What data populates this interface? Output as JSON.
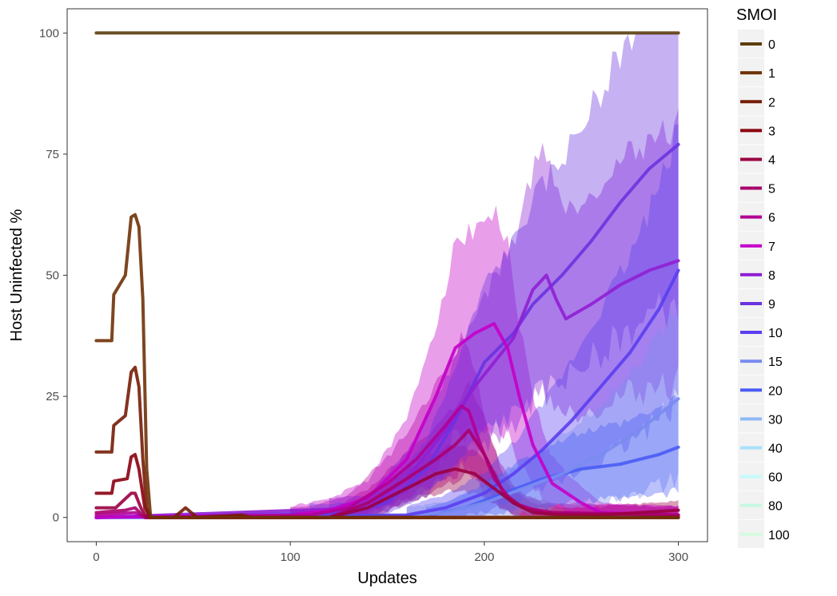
{
  "chart_data": {
    "type": "line",
    "xlabel": "Updates",
    "ylabel": "Host Uninfected %",
    "xlim": [
      -15,
      315
    ],
    "ylim": [
      -5,
      105
    ],
    "x_ticks": [
      0,
      100,
      200,
      300
    ],
    "y_ticks": [
      0,
      25,
      50,
      75,
      100
    ],
    "grid": false,
    "legend": {
      "title": "SMOI",
      "position": "right"
    },
    "series": [
      {
        "name": "0",
        "color": "#5c3d0e",
        "points": [
          [
            0,
            100
          ],
          [
            300,
            100
          ]
        ]
      },
      {
        "name": "1",
        "color": "#6f3208",
        "points": [
          [
            0,
            36.5
          ],
          [
            8,
            36.5
          ],
          [
            9,
            46
          ],
          [
            15,
            50
          ],
          [
            18,
            62
          ],
          [
            20,
            62.5
          ],
          [
            22,
            60
          ],
          [
            24,
            45
          ],
          [
            26,
            10
          ],
          [
            28,
            0
          ],
          [
            30,
            0
          ],
          [
            300,
            0
          ]
        ]
      },
      {
        "name": "2",
        "color": "#751d07",
        "points": [
          [
            0,
            13.5
          ],
          [
            8,
            13.5
          ],
          [
            9,
            19
          ],
          [
            15,
            21
          ],
          [
            18,
            30
          ],
          [
            20,
            31
          ],
          [
            22,
            27
          ],
          [
            24,
            12
          ],
          [
            26,
            2
          ],
          [
            28,
            0
          ],
          [
            40,
            0
          ],
          [
            46,
            2
          ],
          [
            49,
            1
          ],
          [
            52,
            0
          ],
          [
            75,
            0.5
          ],
          [
            80,
            0
          ],
          [
            300,
            0
          ]
        ]
      },
      {
        "name": "3",
        "color": "#8b0010",
        "points": [
          [
            0,
            5
          ],
          [
            8,
            5
          ],
          [
            9,
            7.5
          ],
          [
            16,
            8
          ],
          [
            18,
            12.5
          ],
          [
            20,
            13
          ],
          [
            22,
            10
          ],
          [
            25,
            2
          ],
          [
            28,
            0
          ],
          [
            300,
            0
          ]
        ]
      },
      {
        "name": "4",
        "color": "#9a0043",
        "points": [
          [
            0,
            2
          ],
          [
            10,
            2
          ],
          [
            18,
            5
          ],
          [
            20,
            5
          ],
          [
            23,
            2
          ],
          [
            26,
            0
          ],
          [
            120,
            0
          ],
          [
            140,
            2
          ],
          [
            160,
            6
          ],
          [
            175,
            9
          ],
          [
            185,
            10
          ],
          [
            195,
            9
          ],
          [
            205,
            6
          ],
          [
            215,
            3
          ],
          [
            225,
            1
          ],
          [
            240,
            0.5
          ],
          [
            260,
            0.5
          ],
          [
            280,
            1
          ],
          [
            300,
            1.5
          ]
        ]
      },
      {
        "name": "5",
        "color": "#a8006e",
        "points": [
          [
            0,
            1
          ],
          [
            15,
            1.5
          ],
          [
            20,
            2
          ],
          [
            25,
            0
          ],
          [
            120,
            0
          ],
          [
            140,
            3
          ],
          [
            160,
            8
          ],
          [
            175,
            12
          ],
          [
            185,
            15
          ],
          [
            192,
            18
          ],
          [
            200,
            13
          ],
          [
            210,
            5
          ],
          [
            220,
            2
          ],
          [
            235,
            1
          ],
          [
            300,
            0.5
          ]
        ]
      },
      {
        "name": "6",
        "color": "#b10094",
        "points": [
          [
            0,
            0.5
          ],
          [
            20,
            1
          ],
          [
            25,
            0
          ],
          [
            110,
            0.5
          ],
          [
            130,
            2
          ],
          [
            150,
            7
          ],
          [
            165,
            12
          ],
          [
            180,
            19
          ],
          [
            188,
            23
          ],
          [
            192,
            22
          ],
          [
            198,
            15
          ],
          [
            205,
            8
          ],
          [
            215,
            3
          ],
          [
            230,
            1
          ],
          [
            300,
            0.5
          ]
        ]
      },
      {
        "name": "7",
        "color": "#c400c9",
        "points": [
          [
            0,
            0
          ],
          [
            100,
            0.5
          ],
          [
            120,
            1.5
          ],
          [
            140,
            4
          ],
          [
            160,
            12
          ],
          [
            175,
            25
          ],
          [
            185,
            35
          ],
          [
            195,
            38
          ],
          [
            205,
            40
          ],
          [
            212,
            35
          ],
          [
            218,
            25
          ],
          [
            225,
            15
          ],
          [
            235,
            7
          ],
          [
            250,
            3
          ],
          [
            260,
            1
          ],
          [
            300,
            0.5
          ]
        ]
      },
      {
        "name": "8",
        "color": "#8f1fd4",
        "points": [
          [
            0,
            0
          ],
          [
            140,
            2
          ],
          [
            160,
            8
          ],
          [
            180,
            18
          ],
          [
            195,
            27
          ],
          [
            205,
            32
          ],
          [
            215,
            37
          ],
          [
            225,
            47
          ],
          [
            232,
            50
          ],
          [
            237,
            45
          ],
          [
            242,
            41
          ],
          [
            255,
            44
          ],
          [
            270,
            48
          ],
          [
            285,
            51
          ],
          [
            300,
            53
          ]
        ]
      },
      {
        "name": "9",
        "color": "#6a33e0",
        "points": [
          [
            0,
            0
          ],
          [
            130,
            1
          ],
          [
            150,
            3
          ],
          [
            170,
            10
          ],
          [
            185,
            20
          ],
          [
            200,
            32
          ],
          [
            215,
            38
          ],
          [
            225,
            44
          ],
          [
            240,
            50
          ],
          [
            255,
            57
          ],
          [
            270,
            65
          ],
          [
            285,
            72
          ],
          [
            300,
            77
          ]
        ]
      },
      {
        "name": "10",
        "color": "#5a3ef0",
        "points": [
          [
            0,
            0
          ],
          [
            160,
            0.5
          ],
          [
            180,
            2
          ],
          [
            200,
            5
          ],
          [
            215,
            9
          ],
          [
            230,
            14
          ],
          [
            245,
            20
          ],
          [
            260,
            27
          ],
          [
            275,
            34
          ],
          [
            290,
            43
          ],
          [
            300,
            51
          ]
        ]
      },
      {
        "name": "15",
        "color": "#7a8cf0",
        "points": [
          [
            0,
            0
          ],
          [
            160,
            0.3
          ],
          [
            180,
            1
          ],
          [
            200,
            3
          ],
          [
            220,
            6
          ],
          [
            240,
            9
          ],
          [
            260,
            13
          ],
          [
            280,
            18
          ],
          [
            300,
            24.5
          ]
        ]
      },
      {
        "name": "20",
        "color": "#4a5cf5",
        "points": [
          [
            0,
            0
          ],
          [
            170,
            0.3
          ],
          [
            190,
            2
          ],
          [
            210,
            5
          ],
          [
            230,
            8
          ],
          [
            250,
            10
          ],
          [
            270,
            11
          ],
          [
            290,
            13
          ],
          [
            300,
            14.5
          ]
        ]
      },
      {
        "name": "30",
        "color": "#8fbaf5",
        "points": [
          [
            0,
            0
          ],
          [
            300,
            0
          ]
        ]
      },
      {
        "name": "40",
        "color": "#a8e2fa",
        "points": [
          [
            0,
            0
          ],
          [
            300,
            0
          ]
        ]
      },
      {
        "name": "60",
        "color": "#c6fafa",
        "points": [
          [
            0,
            0
          ],
          [
            300,
            0
          ]
        ]
      },
      {
        "name": "80",
        "color": "#c6f8e2",
        "points": [
          [
            0,
            0
          ],
          [
            300,
            0
          ]
        ]
      },
      {
        "name": "100",
        "color": "#d2fbe0",
        "points": [
          [
            0,
            0
          ],
          [
            300,
            0
          ]
        ]
      }
    ]
  }
}
